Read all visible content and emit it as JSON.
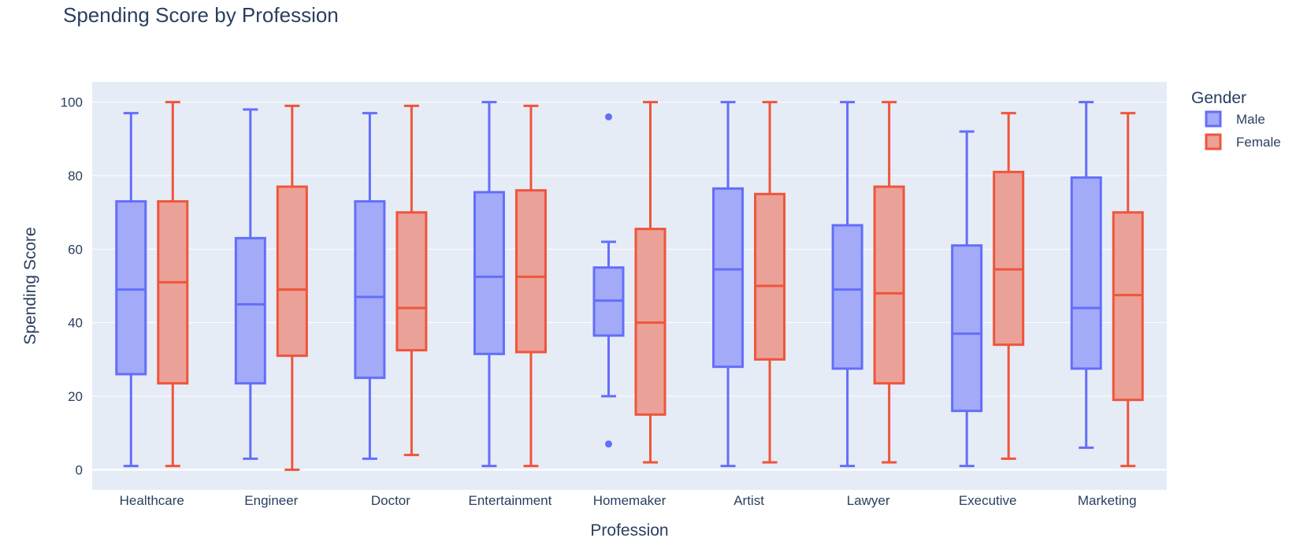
{
  "chart_data": {
    "type": "box",
    "title": "Spending Score by Profession",
    "xlabel": "Profession",
    "ylabel": "Spending Score",
    "ylim": [
      -5.5,
      105.5
    ],
    "yticks": [
      0,
      20,
      40,
      60,
      80,
      100
    ],
    "categories": [
      "Healthcare",
      "Engineer",
      "Doctor",
      "Entertainment",
      "Homemaker",
      "Artist",
      "Lawyer",
      "Executive",
      "Marketing"
    ],
    "grid": true,
    "legend": {
      "title": "Gender",
      "placement": "top-right"
    },
    "series": [
      {
        "name": "Male",
        "color": "#636efa",
        "fill": "#a3aaf7",
        "boxes": [
          {
            "min": 1,
            "q1": 26,
            "median": 49,
            "q3": 73,
            "max": 97,
            "outliers": []
          },
          {
            "min": 3,
            "q1": 23.5,
            "median": 45,
            "q3": 63,
            "max": 98,
            "outliers": []
          },
          {
            "min": 3,
            "q1": 25,
            "median": 47,
            "q3": 73,
            "max": 97,
            "outliers": []
          },
          {
            "min": 1,
            "q1": 31.5,
            "median": 52.5,
            "q3": 75.5,
            "max": 100,
            "outliers": []
          },
          {
            "min": 20,
            "q1": 36.5,
            "median": 46,
            "q3": 55,
            "max": 62,
            "outliers": [
              96,
              7
            ]
          },
          {
            "min": 1,
            "q1": 28,
            "median": 54.5,
            "q3": 76.5,
            "max": 100,
            "outliers": []
          },
          {
            "min": 1,
            "q1": 27.5,
            "median": 49,
            "q3": 66.5,
            "max": 100,
            "outliers": []
          },
          {
            "min": 1,
            "q1": 16,
            "median": 37,
            "q3": 61,
            "max": 92,
            "outliers": []
          },
          {
            "min": 6,
            "q1": 27.5,
            "median": 44,
            "q3": 79.5,
            "max": 100,
            "outliers": []
          }
        ]
      },
      {
        "name": "Female",
        "color": "#ef553b",
        "fill": "#eaa198",
        "boxes": [
          {
            "min": 1,
            "q1": 23.5,
            "median": 51,
            "q3": 73,
            "max": 100,
            "outliers": []
          },
          {
            "min": 0,
            "q1": 31,
            "median": 49,
            "q3": 77,
            "max": 99,
            "outliers": []
          },
          {
            "min": 4,
            "q1": 32.5,
            "median": 44,
            "q3": 70,
            "max": 99,
            "outliers": []
          },
          {
            "min": 1,
            "q1": 32,
            "median": 52.5,
            "q3": 76,
            "max": 99,
            "outliers": []
          },
          {
            "min": 2,
            "q1": 15,
            "median": 40,
            "q3": 65.5,
            "max": 100,
            "outliers": []
          },
          {
            "min": 2,
            "q1": 30,
            "median": 50,
            "q3": 75,
            "max": 100,
            "outliers": []
          },
          {
            "min": 2,
            "q1": 23.5,
            "median": 48,
            "q3": 77,
            "max": 100,
            "outliers": []
          },
          {
            "min": 3,
            "q1": 34,
            "median": 54.5,
            "q3": 81,
            "max": 97,
            "outliers": []
          },
          {
            "min": 1,
            "q1": 19,
            "median": 47.5,
            "q3": 70,
            "max": 97,
            "outliers": []
          }
        ]
      }
    ]
  }
}
